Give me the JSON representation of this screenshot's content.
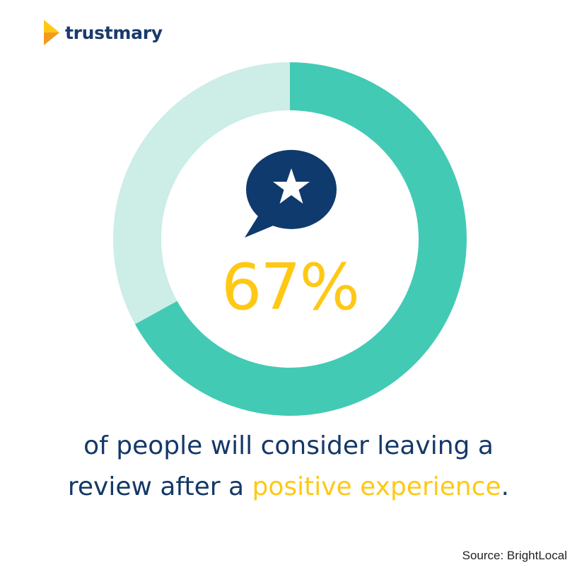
{
  "brand": {
    "name": "trustmary",
    "icon": "play-arrow-logo-icon",
    "colors": {
      "text": "#1a3a6b",
      "mark_light": "#ffc815",
      "mark_dark": "#f39a1e"
    }
  },
  "chart_data": {
    "type": "pie",
    "style": "donut",
    "slices": [
      {
        "value": 67,
        "color": "#42cab4"
      },
      {
        "value": 33,
        "color": "#cdede7"
      }
    ],
    "center_label": "67%",
    "center_icon": "speech-bubble-star-icon",
    "caption_parts": [
      {
        "text": "of people will consider leaving a",
        "highlight": false
      },
      {
        "text": "review after a ",
        "highlight": false
      },
      {
        "text": "positive experience",
        "highlight": true
      },
      {
        "text": ".",
        "highlight": false
      }
    ],
    "source": "Source: BrightLocal"
  },
  "colors": {
    "primary": "#42cab4",
    "remainder": "#cdede7",
    "accent": "#ffc815",
    "navy": "#143868"
  }
}
